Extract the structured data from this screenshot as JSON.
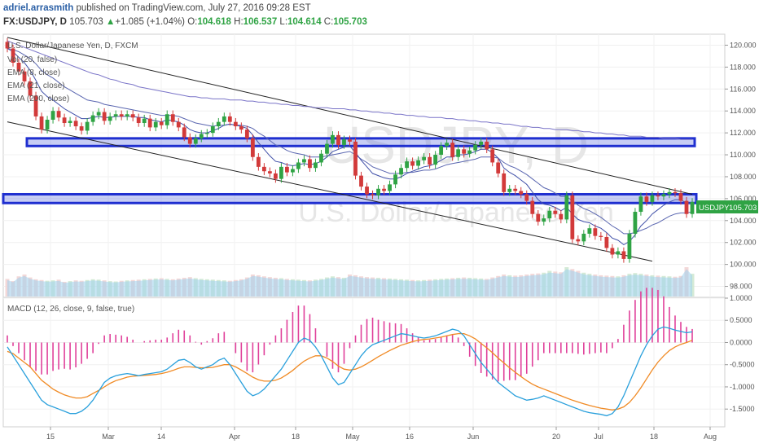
{
  "header": {
    "author": "adriel.arrasmith",
    "published": "published on TradingView.com, July 27, 2016 09:28 EST",
    "symbol": "FX:USDJPY, D",
    "last": "105.703",
    "change_arrow": "▲",
    "change": "+1.085 (+1.04%)",
    "o_label": "O:",
    "o": "104.618",
    "h_label": "H:",
    "h": "106.537",
    "l_label": "L:",
    "l": "104.614",
    "c_label": "C:",
    "c": "105.703"
  },
  "watermark": {
    "symbol": "USDJPY, D",
    "name": "U.S. Dollar/Japanese Yen"
  },
  "legend": [
    "U.S. Dollar/Japanese Yen, D, FXCM",
    "Vol (20, false)",
    "EMA (8, close)",
    "EMA (21, close)",
    "EMA (200, close)"
  ],
  "price_tag": {
    "symbol": "USDJPY",
    "value": "105.703"
  },
  "macd_legend": "MACD (12, 26, close, 9, false, true)",
  "colors": {
    "up": "#2fa344",
    "down": "#d23a3a",
    "ema": "#3b3ba8",
    "zone": "#1f2fd0",
    "macd": "#2aa0dc",
    "signal": "#f08a24",
    "hist": "#e0409a",
    "vol": "#9ed1ee"
  },
  "chart_data": [
    {
      "type": "candlestick",
      "title": "U.S. Dollar/Japanese Yen, D, FXCM",
      "ylim": [
        97,
        121
      ],
      "y_ticks": [
        "120.000",
        "118.000",
        "116.000",
        "114.000",
        "112.000",
        "110.000",
        "108.000",
        "106.000",
        "104.000",
        "102.000",
        "100.000",
        "98.000"
      ],
      "x_tick_labels": [
        "15",
        "Mar",
        "14",
        "Apr",
        "18",
        "May",
        "16",
        "Jun",
        "20",
        "Jul",
        "18",
        "Aug"
      ],
      "close": [
        119.7,
        118.4,
        117.6,
        116.7,
        115.4,
        113.5,
        112.3,
        113.2,
        114.0,
        113.4,
        112.9,
        113.1,
        112.6,
        112.2,
        113.0,
        113.6,
        113.9,
        113.1,
        113.5,
        113.7,
        113.5,
        113.7,
        113.4,
        112.9,
        113.3,
        112.5,
        113.0,
        112.7,
        113.7,
        113.0,
        112.5,
        111.6,
        111.0,
        111.5,
        111.9,
        112.0,
        112.6,
        113.0,
        113.5,
        113.0,
        112.6,
        112.3,
        111.5,
        109.8,
        108.9,
        108.5,
        108.3,
        107.8,
        108.9,
        108.4,
        108.7,
        109.3,
        109.6,
        108.8,
        109.3,
        110.1,
        111.0,
        111.8,
        110.9,
        111.4,
        111.2,
        108.1,
        107.1,
        106.4,
        106.3,
        106.9,
        106.7,
        107.3,
        108.2,
        108.8,
        109.4,
        109.0,
        109.5,
        109.8,
        109.1,
        110.0,
        110.8,
        111.1,
        109.8,
        110.5,
        110.1,
        110.4,
        110.9,
        111.2,
        110.5,
        109.3,
        108.3,
        106.6,
        106.9,
        106.7,
        106.4,
        105.8,
        104.6,
        103.9,
        104.2,
        104.9,
        104.6,
        104.1,
        106.3,
        102.3,
        102.1,
        102.8,
        103.3,
        102.6,
        102.5,
        101.5,
        100.9,
        101.2,
        100.5,
        102.8,
        104.8,
        106.2,
        105.7,
        106.3,
        106.2,
        106.4,
        106.6,
        106.5,
        105.8,
        104.6,
        105.7
      ],
      "ema_8": [
        119.7,
        119.4,
        118.9,
        118.4,
        117.7,
        116.8,
        115.8,
        115.3,
        115.0,
        114.6,
        114.2,
        113.9,
        113.6,
        113.3,
        113.3,
        113.4,
        113.5,
        113.4,
        113.4,
        113.5,
        113.5,
        113.5,
        113.5,
        113.4,
        113.4,
        113.2,
        113.1,
        113.0,
        113.2,
        113.1,
        113.0,
        112.7,
        112.3,
        112.1,
        112.0,
        112.0,
        112.2,
        112.4,
        112.7,
        112.8,
        112.7,
        112.6,
        112.4,
        111.8,
        111.1,
        110.5,
        109.9,
        109.4,
        109.3,
        109.1,
        109.0,
        109.1,
        109.2,
        109.1,
        109.2,
        109.4,
        109.8,
        110.3,
        110.5,
        110.7,
        110.8,
        110.2,
        109.5,
        108.9,
        108.3,
        108.1,
        107.9,
        107.8,
        107.8,
        108.0,
        108.3,
        108.5,
        108.7,
        108.9,
        109.0,
        109.2,
        109.5,
        109.8,
        109.8,
        110.0,
        110.0,
        110.1,
        110.3,
        110.5,
        110.5,
        110.2,
        109.7,
        108.8,
        108.4,
        108.1,
        107.7,
        107.3,
        106.6,
        105.9,
        105.5,
        105.4,
        105.2,
        104.9,
        105.2,
        104.6,
        104.1,
        103.9,
        103.8,
        103.5,
        103.3,
        102.9,
        102.4,
        102.2,
        101.8,
        102.1,
        102.7,
        103.5,
        104.0,
        104.6,
        105.0,
        105.4,
        105.7,
        105.9,
        105.9,
        105.6,
        105.6
      ],
      "ema_21": [
        119.7,
        119.6,
        119.4,
        119.1,
        118.8,
        118.3,
        117.7,
        117.3,
        117.0,
        116.6,
        116.2,
        115.9,
        115.6,
        115.3,
        115.0,
        114.9,
        114.8,
        114.6,
        114.5,
        114.4,
        114.3,
        114.2,
        114.1,
        114.0,
        113.9,
        113.8,
        113.7,
        113.6,
        113.6,
        113.6,
        113.5,
        113.3,
        113.1,
        112.9,
        112.8,
        112.7,
        112.6,
        112.7,
        112.7,
        112.8,
        112.7,
        112.7,
        112.6,
        112.4,
        112.0,
        111.7,
        111.3,
        110.9,
        110.7,
        110.4,
        110.2,
        110.1,
        110.0,
        109.8,
        109.8,
        109.8,
        109.9,
        110.0,
        110.1,
        110.2,
        110.3,
        110.0,
        109.6,
        109.3,
        108.9,
        108.7,
        108.5,
        108.3,
        108.3,
        108.3,
        108.4,
        108.4,
        108.5,
        108.6,
        108.6,
        108.7,
        108.9,
        109.1,
        109.2,
        109.3,
        109.4,
        109.5,
        109.6,
        109.8,
        109.8,
        109.8,
        109.7,
        109.3,
        109.0,
        108.8,
        108.5,
        108.2,
        107.8,
        107.4,
        107.0,
        106.8,
        106.5,
        106.2,
        106.2,
        105.8,
        105.4,
        105.1,
        104.9,
        104.6,
        104.3,
        103.9,
        103.5,
        103.2,
        102.8,
        102.8,
        102.9,
        103.1,
        103.3,
        103.6,
        103.8,
        104.1,
        104.4,
        104.6,
        104.7,
        104.7,
        104.8
      ],
      "ema_200": [
        120.4,
        120.2,
        120.0,
        119.8,
        119.6,
        119.4,
        119.2,
        119.0,
        118.8,
        118.6,
        118.4,
        118.2,
        118.0,
        117.8,
        117.6,
        117.4,
        117.3,
        117.1,
        116.9,
        116.8,
        116.6,
        116.5,
        116.4,
        116.2,
        116.1,
        116.0,
        115.9,
        115.8,
        115.7,
        115.6,
        115.5,
        115.4,
        115.3,
        115.3,
        115.2,
        115.2,
        115.1,
        115.1,
        115.1,
        115.0,
        115.0,
        115.0,
        114.9,
        114.9,
        114.8,
        114.8,
        114.7,
        114.7,
        114.6,
        114.6,
        114.5,
        114.5,
        114.4,
        114.4,
        114.3,
        114.3,
        114.3,
        114.2,
        114.2,
        114.2,
        114.1,
        114.1,
        114.0,
        114.0,
        113.9,
        113.9,
        113.8,
        113.8,
        113.7,
        113.7,
        113.6,
        113.6,
        113.5,
        113.5,
        113.4,
        113.4,
        113.4,
        113.3,
        113.3,
        113.2,
        113.2,
        113.1,
        113.1,
        113.0,
        113.0,
        112.9,
        112.9,
        112.8,
        112.8,
        112.7,
        112.6,
        112.6,
        112.5,
        112.5,
        112.4,
        112.4,
        112.3,
        112.3,
        112.3,
        112.2,
        112.2,
        112.1,
        112.1,
        112.0,
        112.0,
        111.9,
        111.9,
        111.8,
        111.8,
        111.7,
        111.7,
        111.7,
        111.6,
        111.6,
        111.6,
        111.5,
        111.5,
        111.5,
        111.4,
        111.4,
        111.4
      ],
      "volume": [
        48,
        42,
        55,
        60,
        52,
        47,
        45,
        43,
        44,
        46,
        40,
        42,
        44,
        43,
        45,
        47,
        46,
        44,
        42,
        41,
        43,
        44,
        45,
        46,
        47,
        48,
        49,
        50,
        48,
        47,
        49,
        51,
        53,
        50,
        48,
        47,
        46,
        45,
        44,
        43,
        45,
        47,
        52,
        60,
        58,
        55,
        53,
        51,
        50,
        48,
        47,
        46,
        45,
        44,
        46,
        48,
        52,
        55,
        53,
        51,
        60,
        58,
        55,
        53,
        52,
        51,
        50,
        49,
        48,
        47,
        46,
        45,
        44,
        45,
        46,
        47,
        48,
        49,
        50,
        51,
        52,
        51,
        50,
        49,
        48,
        52,
        56,
        60,
        58,
        57,
        58,
        60,
        62,
        63,
        65,
        70,
        68,
        66,
        80,
        75,
        70,
        65,
        62,
        60,
        58,
        57,
        56,
        55,
        58,
        62,
        64,
        62,
        60,
        58,
        57,
        56,
        55,
        54,
        56,
        80,
        62
      ],
      "zones": [
        [
          110.8,
          111.5
        ],
        [
          105.6,
          106.4
        ]
      ],
      "trendlines": [
        {
          "name": "upper",
          "from": [
            0,
            120.7
          ],
          "to": [
            120,
            106.4
          ]
        },
        {
          "name": "lower",
          "from": [
            0,
            113.0
          ],
          "to": [
            113,
            100.3
          ]
        }
      ]
    },
    {
      "type": "macd",
      "title": "MACD (12, 26, close, 9, false, true)",
      "ylim": [
        -1.9,
        1.0
      ],
      "y_ticks": [
        "1.0000",
        "0.5000",
        "0.0000",
        "-0.5000",
        "-1.0000",
        "-1.5000"
      ],
      "macd": [
        -0.1,
        -0.3,
        -0.5,
        -0.7,
        -0.9,
        -1.1,
        -1.3,
        -1.4,
        -1.45,
        -1.5,
        -1.55,
        -1.6,
        -1.6,
        -1.55,
        -1.45,
        -1.3,
        -1.1,
        -0.9,
        -0.8,
        -0.75,
        -0.72,
        -0.7,
        -0.72,
        -0.75,
        -0.72,
        -0.7,
        -0.68,
        -0.66,
        -0.6,
        -0.5,
        -0.4,
        -0.38,
        -0.45,
        -0.55,
        -0.6,
        -0.55,
        -0.5,
        -0.4,
        -0.35,
        -0.5,
        -0.7,
        -0.9,
        -1.1,
        -1.2,
        -1.15,
        -1.05,
        -0.9,
        -0.75,
        -0.6,
        -0.4,
        -0.2,
        0.0,
        0.1,
        0.05,
        -0.1,
        -0.3,
        -0.55,
        -0.8,
        -0.95,
        -0.9,
        -0.7,
        -0.5,
        -0.3,
        -0.15,
        -0.05,
        0.0,
        0.05,
        0.1,
        0.15,
        0.2,
        0.18,
        0.15,
        0.12,
        0.1,
        0.12,
        0.15,
        0.2,
        0.25,
        0.3,
        0.27,
        0.15,
        -0.05,
        -0.25,
        -0.45,
        -0.6,
        -0.75,
        -0.9,
        -1.0,
        -1.1,
        -1.2,
        -1.25,
        -1.3,
        -1.28,
        -1.25,
        -1.2,
        -1.25,
        -1.3,
        -1.35,
        -1.4,
        -1.45,
        -1.5,
        -1.55,
        -1.58,
        -1.6,
        -1.62,
        -1.65,
        -1.6,
        -1.45,
        -1.2,
        -0.9,
        -0.6,
        -0.3,
        -0.05,
        0.15,
        0.3,
        0.35,
        0.32,
        0.28,
        0.25,
        0.22,
        0.24
      ],
      "signal": [
        -0.2,
        -0.25,
        -0.35,
        -0.45,
        -0.55,
        -0.7,
        -0.85,
        -0.95,
        -1.05,
        -1.12,
        -1.18,
        -1.22,
        -1.25,
        -1.25,
        -1.22,
        -1.15,
        -1.08,
        -1.0,
        -0.92,
        -0.86,
        -0.82,
        -0.78,
        -0.76,
        -0.75,
        -0.74,
        -0.73,
        -0.72,
        -0.7,
        -0.67,
        -0.63,
        -0.58,
        -0.55,
        -0.55,
        -0.56,
        -0.57,
        -0.57,
        -0.56,
        -0.53,
        -0.5,
        -0.5,
        -0.55,
        -0.62,
        -0.7,
        -0.78,
        -0.84,
        -0.87,
        -0.87,
        -0.85,
        -0.8,
        -0.72,
        -0.63,
        -0.52,
        -0.42,
        -0.35,
        -0.3,
        -0.3,
        -0.35,
        -0.43,
        -0.53,
        -0.6,
        -0.62,
        -0.6,
        -0.55,
        -0.48,
        -0.4,
        -0.32,
        -0.25,
        -0.18,
        -0.12,
        -0.06,
        -0.02,
        0.02,
        0.05,
        0.07,
        0.08,
        0.1,
        0.12,
        0.15,
        0.18,
        0.2,
        0.2,
        0.15,
        0.08,
        -0.02,
        -0.12,
        -0.23,
        -0.35,
        -0.46,
        -0.57,
        -0.67,
        -0.77,
        -0.86,
        -0.94,
        -1.0,
        -1.05,
        -1.1,
        -1.15,
        -1.2,
        -1.25,
        -1.3,
        -1.34,
        -1.38,
        -1.42,
        -1.45,
        -1.48,
        -1.5,
        -1.52,
        -1.5,
        -1.45,
        -1.35,
        -1.2,
        -1.02,
        -0.82,
        -0.62,
        -0.44,
        -0.3,
        -0.18,
        -0.1,
        -0.04,
        0.0,
        0.05
      ]
    }
  ]
}
